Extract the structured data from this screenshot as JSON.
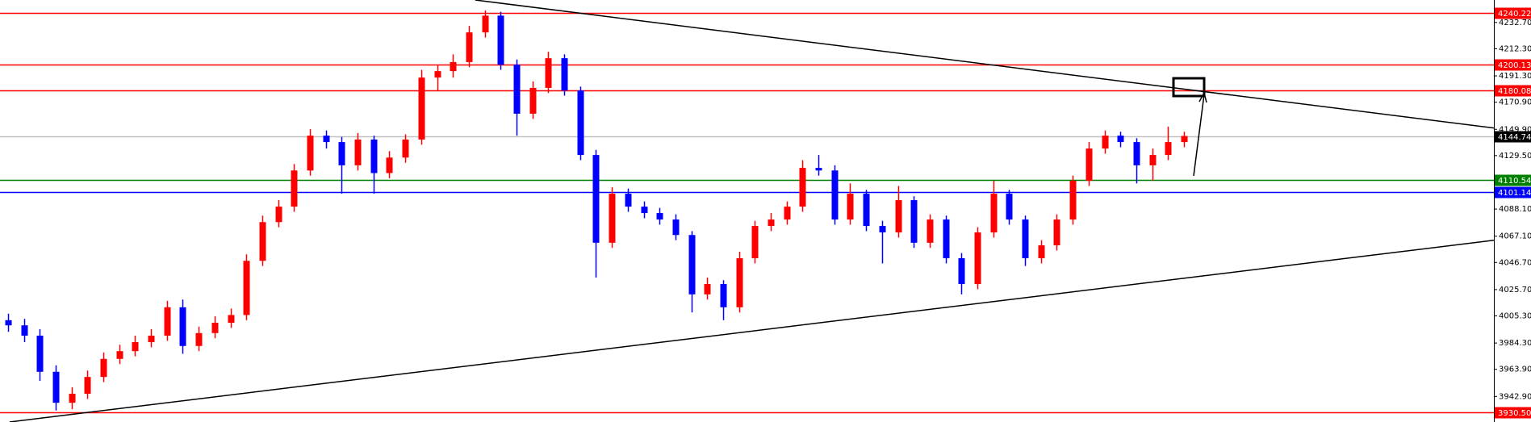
{
  "chart_data": {
    "type": "candlestick",
    "up_color": "#ff0000",
    "down_color": "#0000ff",
    "xlim": [
      -0.5,
      93.5
    ],
    "ylim": [
      3923.1,
      4250.1
    ],
    "yticks": [
      {
        "value": 4232.7,
        "label": "4232.70"
      },
      {
        "value": 4212.3,
        "label": "4212.30"
      },
      {
        "value": 4191.3,
        "label": "4191.30"
      },
      {
        "value": 4170.9,
        "label": "4170.90"
      },
      {
        "value": 4149.9,
        "label": "4149.90"
      },
      {
        "value": 4129.5,
        "label": "4129.50"
      },
      {
        "value": 4088.1,
        "label": "4088.10"
      },
      {
        "value": 4067.1,
        "label": "4067.10"
      },
      {
        "value": 4046.7,
        "label": "4046.70"
      },
      {
        "value": 4025.7,
        "label": "4025.70"
      },
      {
        "value": 4005.3,
        "label": "4005.30"
      },
      {
        "value": 3984.3,
        "label": "3984.30"
      },
      {
        "value": 3963.9,
        "label": "3963.90"
      },
      {
        "value": 3942.9,
        "label": "3942.90"
      }
    ],
    "open": [
      4002,
      3998,
      3990,
      3962,
      3938,
      3945,
      3958,
      3972,
      3978,
      3985,
      3990,
      4012,
      3982,
      3992,
      4000,
      4006,
      4048,
      4078,
      4090,
      4118,
      4145,
      4140,
      4122,
      4142,
      4116,
      4128,
      4142,
      4190,
      4195,
      4202,
      4225,
      4238,
      4200,
      4162,
      4182,
      4205,
      4180,
      4130,
      4062,
      4100,
      4090,
      4085,
      4080,
      4068,
      4022,
      4030,
      4012,
      4050,
      4075,
      4080,
      4090,
      4120,
      4118,
      4080,
      4100,
      4075,
      4070,
      4095,
      4062,
      4080,
      4050,
      4030,
      4070,
      4100,
      4080,
      4050,
      4060,
      4080,
      4110,
      4135,
      4145,
      4140,
      4122,
      4130,
      4140
    ],
    "high": [
      4007,
      4003,
      3995,
      3967,
      3950,
      3963,
      3977,
      3983,
      3990,
      3995,
      4017,
      4018,
      3997,
      4005,
      4011,
      4053,
      4083,
      4095,
      4123,
      4150,
      4149,
      4144,
      4147,
      4145,
      4133,
      4146,
      4196,
      4200,
      4208,
      4230,
      4242,
      4241,
      4204,
      4187,
      4210,
      4208,
      4183,
      4134,
      4105,
      4104,
      4094,
      4089,
      4084,
      4071,
      4035,
      4033,
      4055,
      4079,
      4085,
      4094,
      4126,
      4130,
      4122,
      4108,
      4103,
      4079,
      4106,
      4098,
      4084,
      4083,
      4054,
      4074,
      4110,
      4103,
      4083,
      4064,
      4084,
      4114,
      4140,
      4149,
      4148,
      4143,
      4135,
      4152,
      4148
    ],
    "low": [
      3993,
      3985,
      3955,
      3932,
      3933,
      3941,
      3954,
      3968,
      3974,
      3981,
      3986,
      3976,
      3978,
      3988,
      3996,
      4002,
      4044,
      4074,
      4086,
      4114,
      4135,
      4100,
      4118,
      4100,
      4112,
      4124,
      4138,
      4180,
      4190,
      4198,
      4221,
      4196,
      4145,
      4158,
      4178,
      4176,
      4126,
      4035,
      4058,
      4086,
      4081,
      4076,
      4064,
      4008,
      4018,
      4002,
      4008,
      4046,
      4071,
      4076,
      4086,
      4114,
      4076,
      4076,
      4071,
      4046,
      4066,
      4058,
      4058,
      4046,
      4022,
      4026,
      4066,
      4076,
      4044,
      4046,
      4056,
      4076,
      4106,
      4131,
      4136,
      4108,
      4110,
      4126,
      4136
    ],
    "close": [
      3998,
      3990,
      3962,
      3938,
      3945,
      3958,
      3972,
      3978,
      3985,
      3990,
      4012,
      3982,
      3992,
      4000,
      4006,
      4048,
      4078,
      4090,
      4118,
      4145,
      4140,
      4122,
      4142,
      4116,
      4128,
      4142,
      4190,
      4195,
      4202,
      4225,
      4238,
      4200,
      4162,
      4182,
      4205,
      4180,
      4130,
      4062,
      4100,
      4090,
      4085,
      4080,
      4068,
      4022,
      4030,
      4012,
      4050,
      4075,
      4080,
      4090,
      4120,
      4118,
      4080,
      4100,
      4075,
      4070,
      4095,
      4062,
      4080,
      4050,
      4030,
      4070,
      4100,
      4080,
      4050,
      4060,
      4080,
      4110,
      4135,
      4145,
      4140,
      4122,
      4130,
      4140,
      4144.74
    ],
    "levels": [
      {
        "price": 4240.22,
        "color": "#ff0000"
      },
      {
        "price": 4200.13,
        "color": "#ff0000"
      },
      {
        "price": 4180.08,
        "color": "#ff0000"
      },
      {
        "price": 4144.74,
        "color": "#c0c0c0",
        "label_color": "#000000"
      },
      {
        "price": 4110.54,
        "color": "#008000"
      },
      {
        "price": 4101.14,
        "color": "#0000ff"
      },
      {
        "price": 3930.5,
        "label": "3930.50",
        "color": "#ff0000"
      }
    ],
    "trendlines": [
      {
        "color": "#000000",
        "points": [
          [
            29.4,
            4250.1
          ],
          [
            93.5,
            4150.9
          ]
        ]
      },
      {
        "color": "#000000",
        "points": [
          [
            0.1,
            3923.1
          ],
          [
            93.5,
            4063.9
          ]
        ]
      }
    ]
  }
}
